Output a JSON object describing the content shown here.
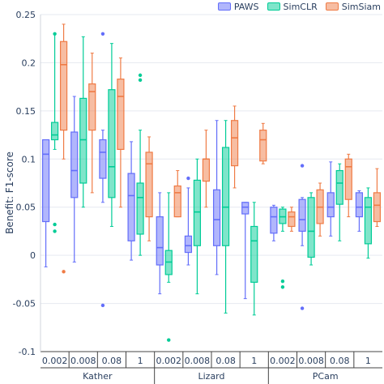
{
  "colors": {
    "PAWS": "#636efa",
    "SimCLR": "#00cc96",
    "SimSiam": "#ef7b45"
  },
  "chart_data": {
    "type": "box",
    "title": "",
    "xlabel": "",
    "ylabel": "Benefit: F1-score",
    "ylim": [
      -0.1,
      0.25
    ],
    "yticks": [
      "0.25",
      "0.2",
      "0.15",
      "0.1",
      "0.05",
      "0",
      "-0.05",
      "-0.1"
    ],
    "grid": true,
    "legend_position": "top-right",
    "series_names": [
      "PAWS",
      "SimCLR",
      "SimSiam"
    ],
    "groups": [
      {
        "dataset": "Kather",
        "fractions": [
          {
            "label": "0.002",
            "boxes": [
              {
                "series": "PAWS",
                "min": -0.012,
                "q1": 0.035,
                "median": 0.105,
                "q3": 0.12,
                "max": 0.12,
                "outliers": []
              },
              {
                "series": "SimCLR",
                "min": 0.11,
                "q1": 0.12,
                "median": 0.125,
                "q3": 0.138,
                "max": 0.23,
                "outliers": [
                  0.23,
                  0.032,
                  0.025
                ]
              },
              {
                "series": "SimSiam",
                "min": 0.1,
                "q1": 0.13,
                "median": 0.198,
                "q3": 0.222,
                "max": 0.24,
                "outliers": [
                  -0.017
                ]
              }
            ]
          },
          {
            "label": "0.008",
            "boxes": [
              {
                "series": "PAWS",
                "min": -0.007,
                "q1": 0.06,
                "median": 0.088,
                "q3": 0.128,
                "max": 0.165,
                "outliers": []
              },
              {
                "series": "SimCLR",
                "min": 0.05,
                "q1": 0.075,
                "median": 0.12,
                "q3": 0.163,
                "max": 0.227,
                "outliers": []
              },
              {
                "series": "SimSiam",
                "min": 0.065,
                "q1": 0.13,
                "median": 0.17,
                "q3": 0.178,
                "max": 0.21,
                "outliers": []
              }
            ]
          },
          {
            "label": "0.08",
            "boxes": [
              {
                "series": "PAWS",
                "min": 0.055,
                "q1": 0.08,
                "median": 0.107,
                "q3": 0.12,
                "max": 0.13,
                "outliers": [
                  0.23,
                  -0.052
                ]
              },
              {
                "series": "SimCLR",
                "min": 0.03,
                "q1": 0.06,
                "median": 0.092,
                "q3": 0.172,
                "max": 0.22,
                "outliers": []
              },
              {
                "series": "SimSiam",
                "min": 0.05,
                "q1": 0.11,
                "median": 0.165,
                "q3": 0.183,
                "max": 0.205,
                "outliers": []
              }
            ]
          },
          {
            "label": "1",
            "boxes": [
              {
                "series": "PAWS",
                "min": -0.005,
                "q1": 0.015,
                "median": 0.062,
                "q3": 0.085,
                "max": 0.118,
                "outliers": []
              },
              {
                "series": "SimCLR",
                "min": 0.0,
                "q1": 0.022,
                "median": 0.06,
                "q3": 0.075,
                "max": 0.13,
                "outliers": [
                  0.187,
                  0.182
                ]
              },
              {
                "series": "SimSiam",
                "min": 0.015,
                "q1": 0.04,
                "median": 0.095,
                "q3": 0.107,
                "max": 0.123,
                "outliers": []
              }
            ]
          }
        ]
      },
      {
        "dataset": "Lizard",
        "fractions": [
          {
            "label": "0.002",
            "boxes": [
              {
                "series": "PAWS",
                "min": -0.04,
                "q1": -0.01,
                "median": 0.008,
                "q3": 0.04,
                "max": 0.065,
                "outliers": []
              },
              {
                "series": "SimCLR",
                "min": -0.028,
                "q1": -0.02,
                "median": -0.007,
                "q3": 0.005,
                "max": 0.065,
                "outliers": [
                  -0.088
                ]
              },
              {
                "series": "SimSiam",
                "min": 0.04,
                "q1": 0.04,
                "median": 0.065,
                "q3": 0.072,
                "max": 0.088,
                "outliers": []
              }
            ]
          },
          {
            "label": "0.008",
            "boxes": [
              {
                "series": "PAWS",
                "min": -0.01,
                "q1": 0.003,
                "median": 0.01,
                "q3": 0.02,
                "max": 0.07,
                "outliers": [
                  0.08
                ]
              },
              {
                "series": "SimCLR",
                "min": -0.04,
                "q1": 0.01,
                "median": 0.045,
                "q3": 0.078,
                "max": 0.1,
                "outliers": []
              },
              {
                "series": "SimSiam",
                "min": 0.05,
                "q1": 0.077,
                "median": 0.1,
                "q3": 0.1,
                "max": 0.13,
                "outliers": []
              }
            ]
          },
          {
            "label": "0.08",
            "boxes": [
              {
                "series": "PAWS",
                "min": -0.02,
                "q1": 0.01,
                "median": 0.037,
                "q3": 0.068,
                "max": 0.14,
                "outliers": []
              },
              {
                "series": "SimCLR",
                "min": -0.06,
                "q1": 0.01,
                "median": 0.05,
                "q3": 0.112,
                "max": 0.14,
                "outliers": []
              },
              {
                "series": "SimSiam",
                "min": 0.07,
                "q1": 0.093,
                "median": 0.122,
                "q3": 0.14,
                "max": 0.155,
                "outliers": []
              }
            ]
          },
          {
            "label": "1",
            "boxes": [
              {
                "series": "PAWS",
                "min": -0.045,
                "q1": 0.043,
                "median": 0.05,
                "q3": 0.055,
                "max": 0.055,
                "outliers": []
              },
              {
                "series": "SimCLR",
                "min": -0.062,
                "q1": -0.028,
                "median": 0.015,
                "q3": 0.03,
                "max": 0.055,
                "outliers": []
              },
              {
                "series": "SimSiam",
                "min": 0.095,
                "q1": 0.098,
                "median": 0.12,
                "q3": 0.13,
                "max": 0.137,
                "outliers": []
              }
            ]
          }
        ]
      },
      {
        "dataset": "PCam",
        "fractions": [
          {
            "label": "0.002",
            "boxes": [
              {
                "series": "PAWS",
                "min": 0.015,
                "q1": 0.023,
                "median": 0.04,
                "q3": 0.05,
                "max": 0.052,
                "outliers": []
              },
              {
                "series": "SimCLR",
                "min": 0.025,
                "q1": 0.033,
                "median": 0.04,
                "q3": 0.048,
                "max": 0.05,
                "outliers": [
                  -0.027,
                  -0.033
                ]
              },
              {
                "series": "SimSiam",
                "min": 0.025,
                "q1": 0.03,
                "median": 0.04,
                "q3": 0.045,
                "max": 0.05,
                "outliers": []
              }
            ]
          },
          {
            "label": "0.008",
            "boxes": [
              {
                "series": "PAWS",
                "min": 0.01,
                "q1": 0.025,
                "median": 0.037,
                "q3": 0.058,
                "max": 0.06,
                "outliers": [
                  0.093,
                  -0.055
                ]
              },
              {
                "series": "SimCLR",
                "min": -0.01,
                "q1": -0.002,
                "median": 0.025,
                "q3": 0.06,
                "max": 0.065,
                "outliers": []
              },
              {
                "series": "SimSiam",
                "min": 0.02,
                "q1": 0.033,
                "median": 0.05,
                "q3": 0.068,
                "max": 0.075,
                "outliers": []
              }
            ]
          },
          {
            "label": "0.08",
            "boxes": [
              {
                "series": "PAWS",
                "min": 0.02,
                "q1": 0.04,
                "median": 0.05,
                "q3": 0.065,
                "max": 0.097,
                "outliers": []
              },
              {
                "series": "SimCLR",
                "min": 0.015,
                "q1": 0.053,
                "median": 0.075,
                "q3": 0.088,
                "max": 0.095,
                "outliers": []
              },
              {
                "series": "SimSiam",
                "min": 0.04,
                "q1": 0.058,
                "median": 0.092,
                "q3": 0.1,
                "max": 0.105,
                "outliers": []
              }
            ]
          },
          {
            "label": "1",
            "boxes": [
              {
                "series": "PAWS",
                "min": 0.025,
                "q1": 0.04,
                "median": 0.05,
                "q3": 0.065,
                "max": 0.067,
                "outliers": []
              },
              {
                "series": "SimCLR",
                "min": -0.003,
                "q1": 0.012,
                "median": 0.05,
                "q3": 0.06,
                "max": 0.07,
                "outliers": []
              },
              {
                "series": "SimSiam",
                "min": 0.03,
                "q1": 0.035,
                "median": 0.052,
                "q3": 0.065,
                "max": 0.09,
                "outliers": []
              }
            ]
          }
        ]
      }
    ]
  }
}
